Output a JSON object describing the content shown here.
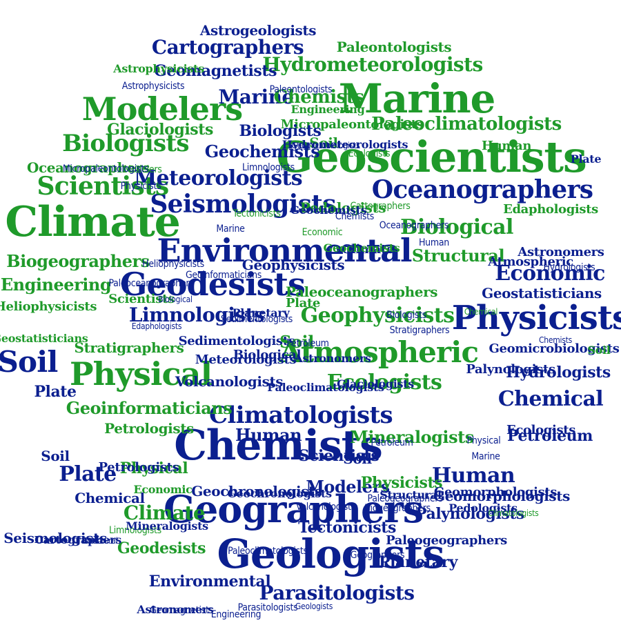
{
  "colors": {
    "blue": "#0b1f8f",
    "green": "#1f9a2a",
    "background": "#ffffff"
  },
  "words": [
    "Geoscientists",
    "Marine",
    "Climate",
    "Environmental",
    "Modelers",
    "Chemists",
    "Geographers",
    "Geologists",
    "Physicists",
    "Geodesists",
    "Atmospheric",
    "Physical",
    "Soil",
    "Oceanographers",
    "Seismologists",
    "Scientists",
    "Biologists",
    "Climatologists",
    "Meteorologists",
    "Geophysicists",
    "Biological",
    "Ecologists",
    "Chemical",
    "Human",
    "Plate",
    "Hydrometeorologists",
    "Economic",
    "Limnologists",
    "Parasitologists",
    "Cartographers",
    "Paleoclimatologists",
    "Biogeographers",
    "Engineering",
    "Structural",
    "Geochemists",
    "Glaciologists",
    "Petroleum",
    "Geoinformaticians",
    "Mineralogists",
    "Geomagnetists",
    "Astrogeologists",
    "Paleontologists",
    "Tectonicists",
    "Planetary",
    "Palynologists",
    "Stratigraphers",
    "Hydrologists",
    "Geostatisticians",
    "Astronomers",
    "Edaphologists",
    "Heliophysicists",
    "Sedimentologists",
    "Volcanologists",
    "Petrologists",
    "Geochronologists",
    "Astrophysicists",
    "Micropaleontologists",
    "Pedologists",
    "Geomorphologists",
    "Geomicrobiologists",
    "Paleogeographers",
    "Paleoceanographers"
  ]
}
